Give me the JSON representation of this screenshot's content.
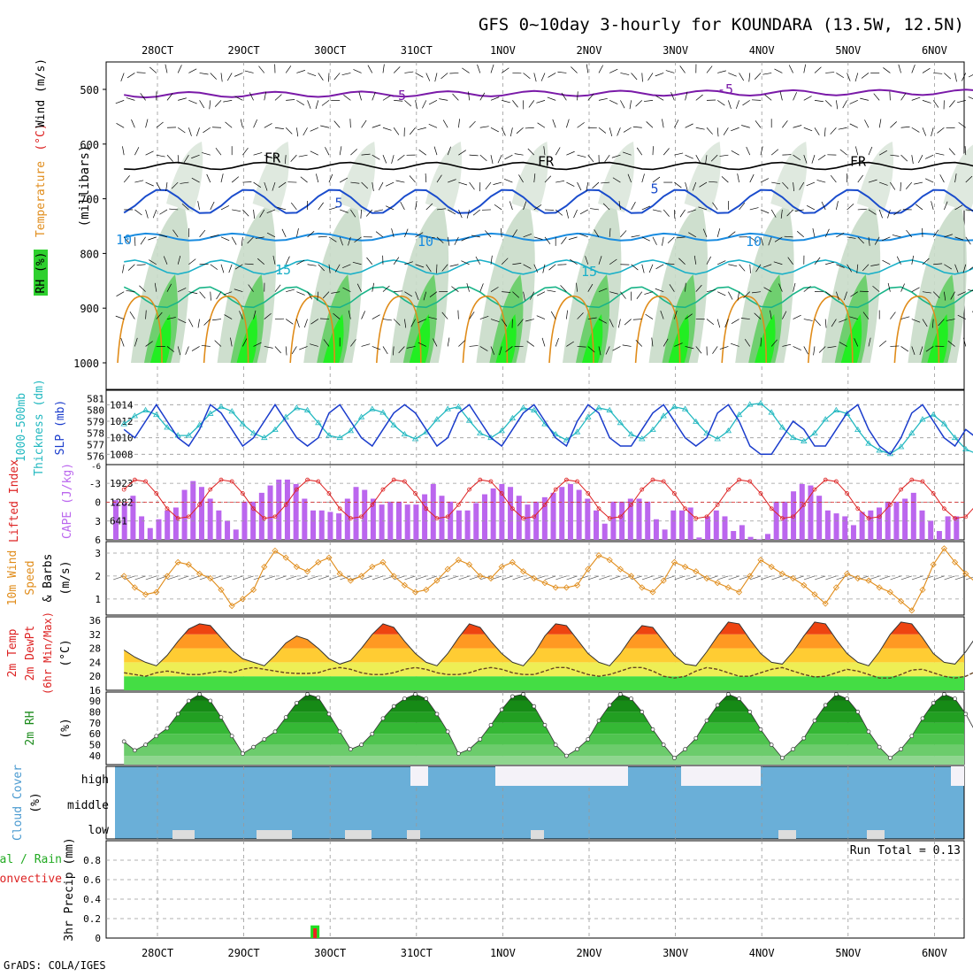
{
  "title": "GFS 0~10day 3-hourly for KOUNDARA (13.5W, 12.5N)",
  "footer": "GrADS: COLA/IGES",
  "dates": [
    "28OCT",
    "29OCT",
    "30OCT",
    "31OCT",
    "1NOV",
    "2NOV",
    "3NOV",
    "4NOV",
    "5NOV",
    "6NOV"
  ],
  "colors": {
    "rh_dark": "#22cc22",
    "rh_light": "#e8f4e8",
    "iso_freeze": "#000000",
    "iso_m5": "#7a1aa8",
    "iso_5": "#1a4ccc",
    "iso_10": "#1a8ce0",
    "iso_15": "#1ab0c8",
    "iso_20": "#1ab488",
    "iso_warm": "#e08c1a",
    "slp": "#1a3ccc",
    "thickness": "#22b8c0",
    "cape": "#bb66ee",
    "li": "#dd2222",
    "wind": "#e08c1a",
    "rh2m": "#1a8a1a",
    "cloud": "#6aafd8",
    "cloud_white": "#f4f2f8"
  },
  "chart_data": [
    {
      "type": "heatmap",
      "name": "upper-air",
      "ylabel_parts": [
        "RH (%)",
        "Temperature",
        "(°C)",
        "Wind (m/s)"
      ],
      "ylabel2": "(millibars)",
      "y_ticks": [
        500,
        600,
        700,
        800,
        900,
        1000
      ],
      "ylim": [
        1000,
        450
      ],
      "isotherm_labels": [
        {
          "value": "-5",
          "color": "iso_m5"
        },
        {
          "value": "FR",
          "color": "iso_freeze"
        },
        {
          "value": "5",
          "color": "iso_5"
        },
        {
          "value": "10",
          "color": "iso_10"
        },
        {
          "value": "15",
          "color": "iso_15"
        }
      ]
    },
    {
      "type": "line",
      "name": "slp-thickness",
      "ylabel_left": "1000-500mb Thickness (dm)",
      "ylabel_right": "SLP (mb)",
      "left_ticks": [
        576,
        577,
        578,
        579,
        580,
        581
      ],
      "right_ticks": [
        1008,
        1010,
        1012,
        1014
      ],
      "ylim_left": [
        575.8,
        581.2
      ],
      "ylim_right": [
        1007.5,
        1015.0
      ],
      "slp": [
        1011,
        1010,
        1012,
        1014,
        1012,
        1010,
        1009,
        1011,
        1014,
        1013,
        1011,
        1009,
        1010,
        1012,
        1014,
        1012,
        1010,
        1009,
        1010,
        1013,
        1014,
        1012,
        1010,
        1009,
        1011,
        1013,
        1014,
        1013,
        1011,
        1009,
        1010,
        1013,
        1014,
        1012,
        1010,
        1009,
        1011,
        1013,
        1014,
        1012,
        1010,
        1009,
        1012,
        1014,
        1013,
        1010,
        1009,
        1009,
        1011,
        1013,
        1014,
        1012,
        1010,
        1009,
        1010,
        1013,
        1014,
        1012,
        1009,
        1008,
        1008,
        1010,
        1012,
        1011,
        1009,
        1009,
        1011,
        1013,
        1014,
        1011,
        1009,
        1008,
        1010,
        1013,
        1014,
        1012,
        1010,
        1009,
        1011,
        1010,
        1010
      ],
      "thickness": [
        578.8,
        579.5,
        580.0,
        579.6,
        578.5,
        577.8,
        577.8,
        578.7,
        579.7,
        580.3,
        579.9,
        578.8,
        578.0,
        577.6,
        578.3,
        579.4,
        580.2,
        580.0,
        578.9,
        577.8,
        577.6,
        578.2,
        579.4,
        580.1,
        579.8,
        578.7,
        577.9,
        577.5,
        578.1,
        579.2,
        580.1,
        580.3,
        579.1,
        578.0,
        577.6,
        578.2,
        579.3,
        580.2,
        580.0,
        578.8,
        577.9,
        577.4,
        578.1,
        579.4,
        580.2,
        580.0,
        578.9,
        577.9,
        577.5,
        578.3,
        579.5,
        580.3,
        580.1,
        579.0,
        578.0,
        577.5,
        578.2,
        579.6,
        580.5,
        580.6,
        579.8,
        578.5,
        577.6,
        577.3,
        578.0,
        579.2,
        580.0,
        579.7,
        578.3,
        577.1,
        576.5,
        576.2,
        576.8,
        578.0,
        579.2,
        579.6,
        578.8,
        577.6,
        576.6,
        576.2,
        576.4
      ]
    },
    {
      "type": "bar",
      "name": "cape-li",
      "ylabel_left": "Lifted Index",
      "ylabel_right": "CAPE (J/kg)",
      "li_ticks": [
        -3,
        0,
        3,
        6
      ],
      "li_top_tick": "-6",
      "li_ylim": [
        6,
        -6
      ],
      "cape_ticks": [
        641,
        1282,
        1923
      ],
      "cape_ylim": [
        0,
        2560
      ],
      "cape": [
        1350,
        1250,
        1500,
        800,
        400,
        700,
        1000,
        1100,
        1700,
        2000,
        1800,
        1400,
        1000,
        650,
        350,
        1300,
        1300,
        1600,
        1850,
        2050,
        2050,
        1900,
        1400,
        1000,
        1000,
        950,
        900,
        1400,
        1800,
        1700,
        1400,
        1200,
        1300,
        1300,
        1200,
        1200,
        1550,
        1900,
        1500,
        1300,
        1000,
        1000,
        1250,
        1550,
        1750,
        1900,
        1800,
        1500,
        1200,
        1300,
        1450,
        1600,
        1800,
        1900,
        1700,
        1400,
        1000,
        550,
        1300,
        1300,
        1400,
        1400,
        1300,
        700,
        350,
        1000,
        1000,
        1100,
        80,
        800,
        1000,
        800,
        300,
        500,
        100,
        20,
        200,
        1300,
        1300,
        1650,
        1900,
        1850,
        1500,
        1000,
        900,
        800,
        500,
        950,
        1000,
        1100,
        1300,
        1300,
        1400,
        1600,
        1000,
        650,
        300,
        800,
        800
      ]
    },
    {
      "type": "line",
      "name": "wind10m",
      "ylabel": [
        "10m Wind",
        "Speed",
        "& Barbs",
        "(m/s)"
      ],
      "y_ticks": [
        1,
        2,
        3
      ],
      "ylim": [
        0.3,
        3.5
      ],
      "values": [
        2.0,
        1.5,
        1.2,
        1.3,
        2.0,
        2.6,
        2.5,
        2.1,
        1.9,
        1.4,
        0.7,
        1.0,
        1.4,
        2.4,
        3.1,
        2.8,
        2.4,
        2.2,
        2.6,
        2.8,
        2.1,
        1.8,
        2.0,
        2.4,
        2.6,
        2.0,
        1.6,
        1.3,
        1.4,
        1.8,
        2.3,
        2.7,
        2.5,
        2.0,
        1.9,
        2.4,
        2.6,
        2.2,
        1.9,
        1.7,
        1.5,
        1.5,
        1.6,
        2.3,
        2.9,
        2.7,
        2.3,
        2.0,
        1.5,
        1.3,
        1.8,
        2.6,
        2.4,
        2.2,
        1.9,
        1.7,
        1.5,
        1.3,
        2.0,
        2.7,
        2.4,
        2.1,
        1.9,
        1.6,
        1.2,
        0.8,
        1.5,
        2.1,
        1.9,
        1.8,
        1.5,
        1.3,
        0.9,
        0.5,
        1.4,
        2.5,
        3.2,
        2.6,
        2.1,
        1.7,
        1.5,
        1.4,
        1.2,
        1.8,
        2.3,
        2.1,
        1.7,
        1.5,
        1.5,
        2.0,
        2.6,
        2.7,
        2.2,
        1.7,
        1.2,
        0.8,
        1.3,
        1.9,
        2.3,
        1.5,
        0.6
      ]
    },
    {
      "type": "area",
      "name": "temp2m",
      "ylabel": [
        "2m Temp",
        "2m DewPt",
        "(6hr Min/Max)",
        "(°C)"
      ],
      "y_ticks": [
        16,
        20,
        24,
        28,
        32,
        36
      ],
      "ylim": [
        16,
        37
      ],
      "temp": [
        27.5,
        25.5,
        24.0,
        23.0,
        26.0,
        30.0,
        33.5,
        35.0,
        34.5,
        31.0,
        27.5,
        25.0,
        24.0,
        23.0,
        26.0,
        29.5,
        31.5,
        30.5,
        28.0,
        25.0,
        23.5,
        24.5,
        28.0,
        32.0,
        35.0,
        34.0,
        30.0,
        26.5,
        24.0,
        23.0,
        26.5,
        31.0,
        35.0,
        34.0,
        30.0,
        26.5,
        24.0,
        23.0,
        26.5,
        31.5,
        35.0,
        34.5,
        30.5,
        26.5,
        24.0,
        23.0,
        26.5,
        31.0,
        34.5,
        34.0,
        30.0,
        26.0,
        23.5,
        23.0,
        27.0,
        31.5,
        35.5,
        35.0,
        30.5,
        26.5,
        24.0,
        23.5,
        27.0,
        31.5,
        35.5,
        35.0,
        30.5,
        26.5,
        24.0,
        23.0,
        27.0,
        32.0,
        35.5,
        35.0,
        31.0,
        26.5,
        24.0,
        23.5,
        27.0,
        31.5,
        35.0,
        34.0,
        30.0,
        26.0,
        23.5,
        22.5
      ],
      "dewpt": [
        21.0,
        20.5,
        20.0,
        21.0,
        21.5,
        21.0,
        20.5,
        20.5,
        21.0,
        21.5,
        21.0,
        22.0,
        22.5,
        22.0,
        21.5,
        21.0,
        20.8,
        20.8,
        21.0,
        22.0,
        22.5,
        22.0,
        21.0,
        20.5,
        20.5,
        21.0,
        22.0,
        22.5,
        22.0,
        21.0,
        20.5,
        20.5,
        21.0,
        22.0,
        22.5,
        22.0,
        21.0,
        20.5,
        20.5,
        21.5,
        22.5,
        22.5,
        21.5,
        20.5,
        20.0,
        20.5,
        21.5,
        22.5,
        22.5,
        21.5,
        20.0,
        19.5,
        20.0,
        21.5,
        22.5,
        22.0,
        21.0,
        20.0,
        20.0,
        21.0,
        22.0,
        22.5,
        21.5,
        20.5,
        19.8,
        20.0,
        21.0,
        22.0,
        21.5,
        20.5,
        19.5,
        19.5,
        20.5,
        21.8,
        22.0,
        21.0,
        20.0,
        19.5,
        20.0,
        21.5,
        22.5
      ]
    },
    {
      "type": "area",
      "name": "rh2m",
      "ylabel": [
        "2m RH",
        "(%)"
      ],
      "y_ticks": [
        40,
        50,
        60,
        70,
        80,
        90
      ],
      "ylim": [
        32,
        98
      ],
      "values": [
        53,
        45,
        50,
        58,
        65,
        78,
        90,
        96,
        90,
        75,
        58,
        42,
        48,
        55,
        62,
        75,
        88,
        96,
        93,
        78,
        62,
        46,
        50,
        60,
        74,
        85,
        92,
        96,
        92,
        78,
        62,
        42,
        46,
        55,
        68,
        82,
        94,
        96,
        85,
        68,
        50,
        40,
        46,
        55,
        72,
        86,
        96,
        92,
        80,
        64,
        50,
        38,
        46,
        56,
        72,
        86,
        96,
        92,
        80,
        64,
        50,
        38,
        46,
        56,
        72,
        86,
        96,
        92,
        80,
        62,
        48,
        38,
        46,
        58,
        74,
        88,
        96,
        92,
        78,
        60,
        45,
        38,
        48,
        60,
        76,
        90,
        96
      ]
    },
    {
      "type": "bar",
      "name": "cloud-cover",
      "ylabel": [
        "Cloud Cover",
        "(%)"
      ],
      "levels": [
        "high",
        "middle",
        "low"
      ],
      "high_gaps": [
        0,
        0,
        0,
        0,
        0,
        0,
        0,
        0,
        0,
        0,
        0,
        0,
        0,
        0,
        0,
        0,
        0,
        0,
        0,
        0,
        0,
        0,
        0,
        0,
        0,
        0,
        0,
        0,
        0,
        0,
        0,
        0,
        0,
        0,
        0,
        0,
        0,
        0,
        0,
        0,
        0,
        0,
        0,
        0,
        0,
        0,
        0,
        0,
        0,
        0,
        0,
        0,
        0,
        0,
        0,
        0,
        0,
        0,
        0,
        0,
        0,
        0,
        0,
        0,
        0,
        0,
        0,
        0,
        0,
        0,
        0,
        0,
        0,
        0,
        0,
        0,
        0,
        0,
        0,
        0,
        0,
        0,
        0,
        0,
        0,
        0,
        0,
        0,
        0,
        0,
        0,
        0,
        0,
        0,
        0,
        0,
        0,
        0,
        0,
        0
      ]
    },
    {
      "type": "bar",
      "name": "precip",
      "ylabel_left": [
        "Total / Rain",
        "Convective"
      ],
      "ylabel": "3hr Precip (mm)",
      "y_ticks": [
        0,
        0.2,
        0.4,
        0.6,
        0.8
      ],
      "ylim": [
        0,
        1.0
      ],
      "run_total": "Run Total = 0.13",
      "bar_time": 17.7,
      "total": 0.13,
      "convective": 0.1
    }
  ]
}
